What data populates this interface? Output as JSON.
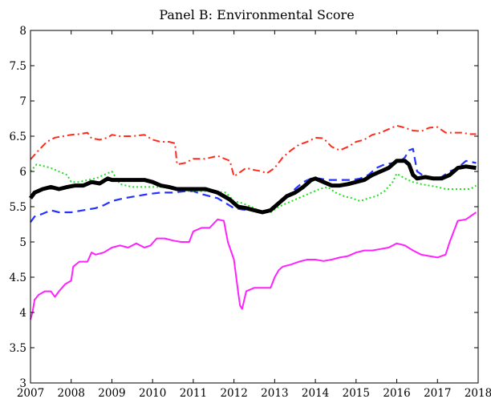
{
  "chart_data": {
    "type": "line",
    "title": "Panel B: Environmental Score",
    "xlabel": "",
    "ylabel": "",
    "xlim": [
      2007,
      2018
    ],
    "ylim": [
      3,
      8
    ],
    "xticks": [
      "2007",
      "2008",
      "2009",
      "2010",
      "2011",
      "2012",
      "2013",
      "2014",
      "2015",
      "2016",
      "2017",
      "2018"
    ],
    "yticks": [
      "3",
      "3.5",
      "4",
      "4.5",
      "5",
      "5.5",
      "6",
      "6.5",
      "7",
      "7.5",
      "8"
    ],
    "grid": false,
    "legend": "none",
    "series": [
      {
        "color": "#ff2a1a",
        "style": "dashdot",
        "x": [
          2007.0,
          2007.2,
          2007.4,
          2007.6,
          2007.8,
          2008.0,
          2008.2,
          2008.4,
          2008.5,
          2008.7,
          2008.9,
          2009.0,
          2009.2,
          2009.5,
          2009.8,
          2010.0,
          2010.2,
          2010.4,
          2010.55,
          2010.6,
          2010.8,
          2011.0,
          2011.3,
          2011.6,
          2011.9,
          2012.0,
          2012.1,
          2012.3,
          2012.5,
          2012.7,
          2012.8,
          2013.0,
          2013.2,
          2013.4,
          2013.6,
          2013.8,
          2014.0,
          2014.2,
          2014.4,
          2014.6,
          2014.8,
          2015.0,
          2015.2,
          2015.4,
          2015.6,
          2015.8,
          2016.0,
          2016.2,
          2016.4,
          2016.6,
          2016.8,
          2017.0,
          2017.2,
          2017.4,
          2017.6,
          2017.8,
          2017.95
        ],
        "y": [
          6.17,
          6.3,
          6.42,
          6.48,
          6.5,
          6.52,
          6.53,
          6.55,
          6.47,
          6.45,
          6.48,
          6.52,
          6.5,
          6.5,
          6.52,
          6.45,
          6.42,
          6.42,
          6.4,
          6.1,
          6.12,
          6.18,
          6.18,
          6.22,
          6.15,
          5.93,
          5.97,
          6.05,
          6.02,
          6.0,
          5.97,
          6.05,
          6.2,
          6.3,
          6.38,
          6.42,
          6.48,
          6.47,
          6.35,
          6.3,
          6.35,
          6.42,
          6.45,
          6.52,
          6.55,
          6.6,
          6.65,
          6.62,
          6.58,
          6.57,
          6.62,
          6.63,
          6.55,
          6.55,
          6.55,
          6.53,
          6.53
        ]
      },
      {
        "color": "#2433ff",
        "style": "dashed",
        "x": [
          2007.0,
          2007.1,
          2007.3,
          2007.5,
          2007.7,
          2008.0,
          2008.3,
          2008.6,
          2008.8,
          2009.0,
          2009.3,
          2009.6,
          2009.9,
          2010.2,
          2010.5,
          2010.8,
          2011.0,
          2011.2,
          2011.4,
          2011.6,
          2011.8,
          2012.0,
          2012.2,
          2012.4,
          2012.6,
          2012.8,
          2012.9,
          2013.1,
          2013.3,
          2013.5,
          2013.7,
          2013.9,
          2014.1,
          2014.3,
          2014.5,
          2014.7,
          2014.9,
          2015.1,
          2015.3,
          2015.5,
          2015.7,
          2015.9,
          2016.1,
          2016.2,
          2016.3,
          2016.4,
          2016.5,
          2016.7,
          2016.9,
          2017.1,
          2017.3,
          2017.5,
          2017.7,
          2017.95
        ],
        "y": [
          5.28,
          5.36,
          5.4,
          5.45,
          5.42,
          5.42,
          5.45,
          5.48,
          5.52,
          5.58,
          5.62,
          5.65,
          5.68,
          5.7,
          5.7,
          5.72,
          5.72,
          5.68,
          5.65,
          5.62,
          5.55,
          5.48,
          5.46,
          5.45,
          5.45,
          5.44,
          5.45,
          5.55,
          5.65,
          5.75,
          5.85,
          5.9,
          5.9,
          5.88,
          5.88,
          5.88,
          5.88,
          5.9,
          5.95,
          6.05,
          6.1,
          6.12,
          6.15,
          6.2,
          6.3,
          6.32,
          6.0,
          5.92,
          5.9,
          5.92,
          6.0,
          6.05,
          6.15,
          6.12
        ]
      },
      {
        "color": "#22dd22",
        "style": "dotted",
        "x": [
          2007.0,
          2007.15,
          2007.3,
          2007.5,
          2007.7,
          2007.9,
          2008.0,
          2008.2,
          2008.4,
          2008.6,
          2008.8,
          2009.0,
          2009.2,
          2009.5,
          2009.8,
          2010.0,
          2010.3,
          2010.6,
          2010.9,
          2011.2,
          2011.5,
          2011.8,
          2012.0,
          2012.2,
          2012.5,
          2012.7,
          2012.9,
          2013.1,
          2013.3,
          2013.5,
          2013.7,
          2013.9,
          2014.1,
          2014.3,
          2014.5,
          2014.7,
          2014.9,
          2015.1,
          2015.3,
          2015.5,
          2015.7,
          2015.9,
          2016.0,
          2016.2,
          2016.4,
          2016.6,
          2016.8,
          2017.0,
          2017.2,
          2017.4,
          2017.6,
          2017.8,
          2017.95
        ],
        "y": [
          6.0,
          6.1,
          6.08,
          6.05,
          6.0,
          5.95,
          5.85,
          5.85,
          5.88,
          5.9,
          5.95,
          6.0,
          5.82,
          5.78,
          5.78,
          5.78,
          5.78,
          5.75,
          5.72,
          5.72,
          5.72,
          5.7,
          5.58,
          5.55,
          5.48,
          5.42,
          5.42,
          5.5,
          5.55,
          5.6,
          5.65,
          5.7,
          5.75,
          5.78,
          5.7,
          5.65,
          5.62,
          5.58,
          5.62,
          5.65,
          5.72,
          5.85,
          5.97,
          5.9,
          5.85,
          5.82,
          5.8,
          5.78,
          5.75,
          5.75,
          5.75,
          5.75,
          5.8
        ]
      },
      {
        "color": "#000000",
        "style": "solid-thick",
        "x": [
          2007.0,
          2007.1,
          2007.3,
          2007.5,
          2007.7,
          2007.9,
          2008.1,
          2008.3,
          2008.5,
          2008.7,
          2008.9,
          2009.0,
          2009.2,
          2009.5,
          2009.8,
          2010.0,
          2010.2,
          2010.4,
          2010.6,
          2010.8,
          2011.0,
          2011.3,
          2011.6,
          2011.9,
          2012.1,
          2012.3,
          2012.5,
          2012.7,
          2012.9,
          2013.1,
          2013.3,
          2013.5,
          2013.7,
          2013.9,
          2014.0,
          2014.2,
          2014.4,
          2014.6,
          2014.8,
          2015.0,
          2015.2,
          2015.4,
          2015.6,
          2015.8,
          2016.0,
          2016.2,
          2016.3,
          2016.4,
          2016.5,
          2016.7,
          2016.9,
          2017.1,
          2017.3,
          2017.5,
          2017.7,
          2017.95
        ],
        "y": [
          5.62,
          5.7,
          5.75,
          5.78,
          5.75,
          5.78,
          5.8,
          5.8,
          5.85,
          5.83,
          5.9,
          5.88,
          5.88,
          5.88,
          5.88,
          5.85,
          5.8,
          5.78,
          5.75,
          5.75,
          5.75,
          5.75,
          5.7,
          5.6,
          5.5,
          5.48,
          5.45,
          5.42,
          5.45,
          5.55,
          5.65,
          5.7,
          5.78,
          5.88,
          5.9,
          5.85,
          5.8,
          5.8,
          5.82,
          5.85,
          5.88,
          5.95,
          6.0,
          6.05,
          6.15,
          6.15,
          6.1,
          5.95,
          5.9,
          5.92,
          5.9,
          5.9,
          5.95,
          6.05,
          6.07,
          6.05
        ]
      },
      {
        "color": "#ff22ff",
        "style": "solid",
        "x": [
          2007.0,
          2007.05,
          2007.1,
          2007.2,
          2007.35,
          2007.5,
          2007.6,
          2007.7,
          2007.85,
          2008.0,
          2008.05,
          2008.2,
          2008.4,
          2008.5,
          2008.6,
          2008.8,
          2009.0,
          2009.2,
          2009.4,
          2009.6,
          2009.8,
          2009.95,
          2010.1,
          2010.3,
          2010.5,
          2010.7,
          2010.9,
          2011.0,
          2011.2,
          2011.4,
          2011.6,
          2011.75,
          2011.85,
          2012.0,
          2012.1,
          2012.15,
          2012.2,
          2012.3,
          2012.5,
          2012.7,
          2012.9,
          2013.0,
          2013.1,
          2013.2,
          2013.4,
          2013.6,
          2013.8,
          2014.0,
          2014.2,
          2014.4,
          2014.6,
          2014.8,
          2015.0,
          2015.2,
          2015.4,
          2015.6,
          2015.8,
          2016.0,
          2016.2,
          2016.4,
          2016.6,
          2016.8,
          2017.0,
          2017.1,
          2017.2,
          2017.3,
          2017.5,
          2017.7,
          2017.95
        ],
        "y": [
          3.9,
          4.0,
          4.18,
          4.25,
          4.3,
          4.3,
          4.22,
          4.3,
          4.4,
          4.45,
          4.65,
          4.72,
          4.72,
          4.85,
          4.82,
          4.85,
          4.92,
          4.95,
          4.92,
          4.98,
          4.92,
          4.95,
          5.05,
          5.05,
          5.02,
          5.0,
          5.0,
          5.15,
          5.2,
          5.2,
          5.32,
          5.3,
          5.0,
          4.75,
          4.3,
          4.1,
          4.05,
          4.3,
          4.35,
          4.35,
          4.35,
          4.5,
          4.6,
          4.65,
          4.68,
          4.72,
          4.75,
          4.75,
          4.73,
          4.75,
          4.78,
          4.8,
          4.85,
          4.88,
          4.88,
          4.9,
          4.92,
          4.98,
          4.95,
          4.88,
          4.82,
          4.8,
          4.78,
          4.8,
          4.82,
          5.0,
          5.3,
          5.32,
          5.42
        ]
      }
    ]
  }
}
